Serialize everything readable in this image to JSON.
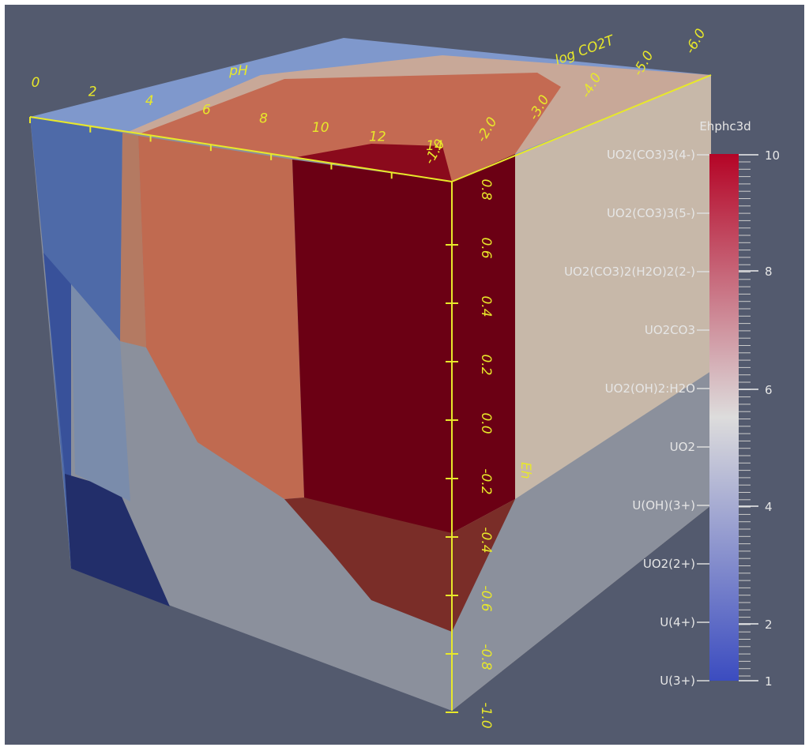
{
  "view": {
    "ph_axis": {
      "label": "pH",
      "ticks": [
        "0",
        "2",
        "4",
        "6",
        "8",
        "10",
        "12",
        "14"
      ]
    },
    "eh_axis": {
      "label": "Eh",
      "ticks": [
        "0.8",
        "0.6",
        "0.4",
        "0.2",
        "0.0",
        "-0.2",
        "-0.4",
        "-0.6",
        "-0.8",
        "-1.0"
      ]
    },
    "co2_axis": {
      "label": "log CO2T",
      "ticks": [
        "-1.0",
        "-2.0",
        "-3.0",
        "-4.0",
        "-5.0",
        "-6.0"
      ]
    },
    "colorbar": {
      "title": "Ehphc3d",
      "species": [
        "UO2(CO3)3(4-)",
        "UO2(CO3)3(5-)",
        "UO2(CO3)2(H2O)2(2-)",
        "UO2CO3",
        "UO2(OH)2:H2O",
        "UO2",
        "U(OH)(3+)",
        "UO2(2+)",
        "U(4+)",
        "U(3+)"
      ],
      "ticks": [
        "10",
        "8",
        "6",
        "4",
        "2",
        "1"
      ]
    }
  }
}
